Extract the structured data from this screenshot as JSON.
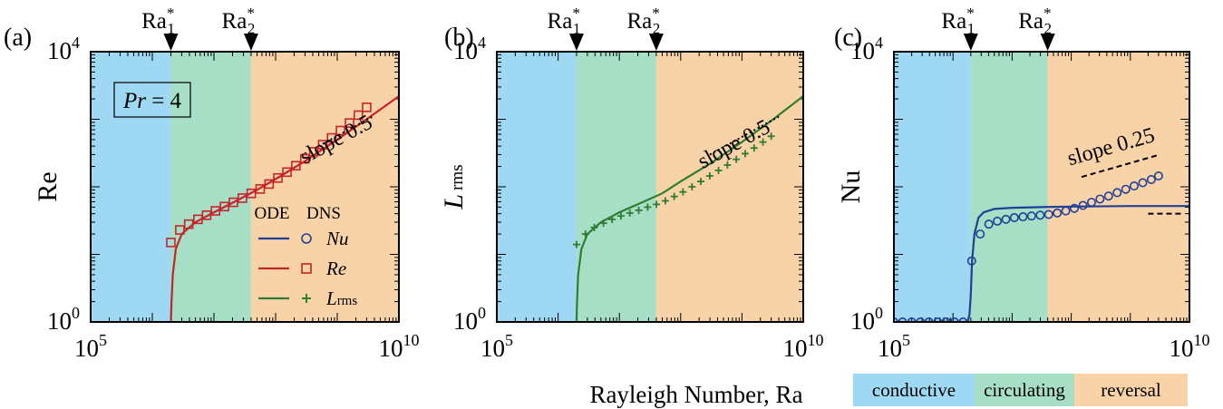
{
  "figure": {
    "common_xlabel": "Rayleigh Number, Ra",
    "marker_labels": {
      "ra1_base": "Ra",
      "ra1_sup": "*",
      "ra1_sub": "1",
      "ra2_base": "Ra",
      "ra2_sup": "*",
      "ra2_sub": "2"
    },
    "region_colors": {
      "conductive": "#9fd8f2",
      "circulating": "#a6dfc6",
      "reversal": "#f8d3a8"
    },
    "region_legend": [
      {
        "label": "conductive",
        "color": "#9fd8f2"
      },
      {
        "label": "circulating",
        "color": "#a6dfc6"
      },
      {
        "label": "reversal",
        "color": "#f8d3a8"
      }
    ]
  },
  "chart_data": [
    {
      "type": "line",
      "panel_label": "(a)",
      "xscale": "log",
      "yscale": "log",
      "xlim": [
        100000,
        10000000000
      ],
      "ylim": [
        1,
        10000
      ],
      "xticks": [
        {
          "base": "10",
          "exp": "5"
        },
        {
          "base": "10",
          "exp": "10"
        }
      ],
      "yticks": [
        {
          "base": "10",
          "exp": "0"
        },
        {
          "base": "10",
          "exp": "4"
        }
      ],
      "ylabel": "Re",
      "regions": {
        "ra1": 2000000,
        "ra2": 40000000
      },
      "annotation_box": {
        "var": "Pr",
        "rest": " = 4"
      },
      "slope": {
        "label": "slope 0.5",
        "x1": 500000000,
        "y1": 400,
        "x2": 4000000000,
        "y2": 1131
      },
      "series": [
        {
          "name": "Re",
          "kind": "ode-line",
          "color": "#c4242b",
          "x": [
            2000000,
            2050000,
            2150000,
            2400000,
            3000000,
            5000000,
            10000000,
            20000000,
            50000000,
            100000000,
            300000000,
            1000000000,
            3000000000,
            10000000000
          ],
          "y": [
            1,
            2,
            5,
            12,
            20,
            30,
            42,
            58,
            90,
            130,
            240,
            500,
            1000,
            2200
          ]
        },
        {
          "name": "Re",
          "kind": "dns-square",
          "color": "#c4242b",
          "x": [
            2000000,
            2800000,
            3900000,
            5500000,
            7600000,
            10600000,
            14800000,
            20700000,
            28900000,
            40300000,
            56200000,
            78500000,
            109000000,
            153000000,
            213000000,
            298000000,
            415000000,
            580000000,
            809000000,
            1130000000,
            1580000000,
            2200000000,
            3000000000
          ],
          "y": [
            15,
            23,
            28,
            33,
            38,
            44,
            51,
            59,
            68,
            80,
            93,
            110,
            135,
            165,
            205,
            260,
            330,
            420,
            530,
            680,
            880,
            1150,
            1500
          ]
        }
      ]
    },
    {
      "type": "line",
      "panel_label": "(b)",
      "xscale": "log",
      "yscale": "log",
      "xlim": [
        100000,
        10000000000
      ],
      "ylim": [
        1,
        10000
      ],
      "xticks": [
        {
          "base": "10",
          "exp": "5"
        },
        {
          "base": "10",
          "exp": "10"
        }
      ],
      "yticks": [
        {
          "base": "10",
          "exp": "0"
        },
        {
          "base": "10",
          "exp": "4"
        }
      ],
      "ylabel_main": "L",
      "ylabel_sub": "rms",
      "regions": {
        "ra1": 2000000,
        "ra2": 40000000
      },
      "slope": {
        "label": "slope 0.5",
        "x1": 300000000,
        "y1": 300,
        "x2": 4000000000,
        "y2": 1095
      },
      "series": [
        {
          "name": "Lrms",
          "kind": "ode-line",
          "color": "#2f7d32",
          "x": [
            2000000,
            2040000,
            2120000,
            2400000,
            3000000,
            5000000,
            10000000,
            20000000,
            50000000,
            100000000,
            300000000,
            1000000000,
            3000000000,
            10000000000
          ],
          "y": [
            1,
            2,
            5,
            12,
            20,
            30,
            42,
            55,
            80,
            120,
            220,
            460,
            950,
            2200
          ]
        },
        {
          "name": "Lrms",
          "kind": "dns-plus",
          "color": "#2f7d32",
          "x": [
            2000000,
            2800000,
            3900000,
            5500000,
            7600000,
            10600000,
            14800000,
            20700000,
            28900000,
            40300000,
            56200000,
            78500000,
            109000000,
            153000000,
            213000000,
            298000000,
            415000000,
            580000000,
            809000000,
            1130000000,
            1580000000,
            2200000000,
            3000000000
          ],
          "y": [
            14,
            20,
            25,
            29,
            33,
            37,
            41,
            45,
            50,
            55,
            62,
            72,
            84,
            100,
            120,
            145,
            175,
            210,
            255,
            310,
            375,
            460,
            560
          ]
        }
      ]
    },
    {
      "type": "line",
      "panel_label": "(c)",
      "xscale": "log",
      "yscale": "log",
      "xlim": [
        100000,
        10000000000
      ],
      "ylim": [
        1,
        10000
      ],
      "xticks": [
        {
          "base": "10",
          "exp": "5"
        },
        {
          "base": "10",
          "exp": "10"
        }
      ],
      "yticks": [
        {
          "base": "10",
          "exp": "0"
        },
        {
          "base": "10",
          "exp": "4"
        }
      ],
      "ylabel": "Nu",
      "regions": {
        "ra1": 2000000,
        "ra2": 40000000
      },
      "slope": {
        "label": "slope 0.25",
        "x1": 150000000,
        "y1": 140,
        "x2": 3000000000,
        "y2": 296
      },
      "flat_dash": {
        "x1": 2000000000,
        "y1": 40,
        "x2": 8000000000,
        "y2": 40
      },
      "series": [
        {
          "name": "Nu",
          "kind": "ode-line",
          "color": "#1f3f99",
          "x": [
            100000,
            1600000,
            1800000,
            1900000,
            2000000,
            2100000,
            2300000,
            2700000,
            3300000,
            5000000,
            10000000,
            30000000,
            100000000,
            1000000000,
            10000000000
          ],
          "y": [
            1,
            1,
            1.05,
            1.3,
            2.5,
            8,
            20,
            35,
            42,
            47,
            49,
            50,
            51,
            52,
            52
          ]
        },
        {
          "name": "Nu",
          "kind": "dns-circle",
          "color": "#1f3f99",
          "x": [
            100000,
            140000,
            200000,
            280000,
            390000,
            550000,
            760000,
            1060000,
            1480000,
            2070000,
            2890000,
            4030000,
            5620000,
            7850000,
            10900000,
            15300000,
            21300000,
            29800000,
            41500000,
            58000000,
            80900000,
            113000000,
            158000000,
            220000000,
            307000000,
            428000000,
            598000000,
            835000000,
            1160000000,
            1620000000,
            2260000000,
            3000000000
          ],
          "y": [
            1,
            1,
            1,
            1,
            1,
            1,
            1,
            1,
            1,
            8,
            20,
            28,
            31,
            33,
            35,
            36,
            37,
            38,
            39,
            41,
            44,
            48,
            53,
            59,
            66,
            73,
            82,
            92,
            103,
            115,
            128,
            145
          ]
        }
      ]
    }
  ],
  "legend": {
    "header_ode": "ODE",
    "header_dns": "DNS",
    "entries": [
      {
        "label": "Nu",
        "color": "#1f3f99",
        "marker": "circle"
      },
      {
        "label": "Re",
        "color": "#c4242b",
        "marker": "square"
      },
      {
        "label_main": "L",
        "label_sub": "rms",
        "color": "#2f7d32",
        "marker": "plus"
      }
    ]
  }
}
